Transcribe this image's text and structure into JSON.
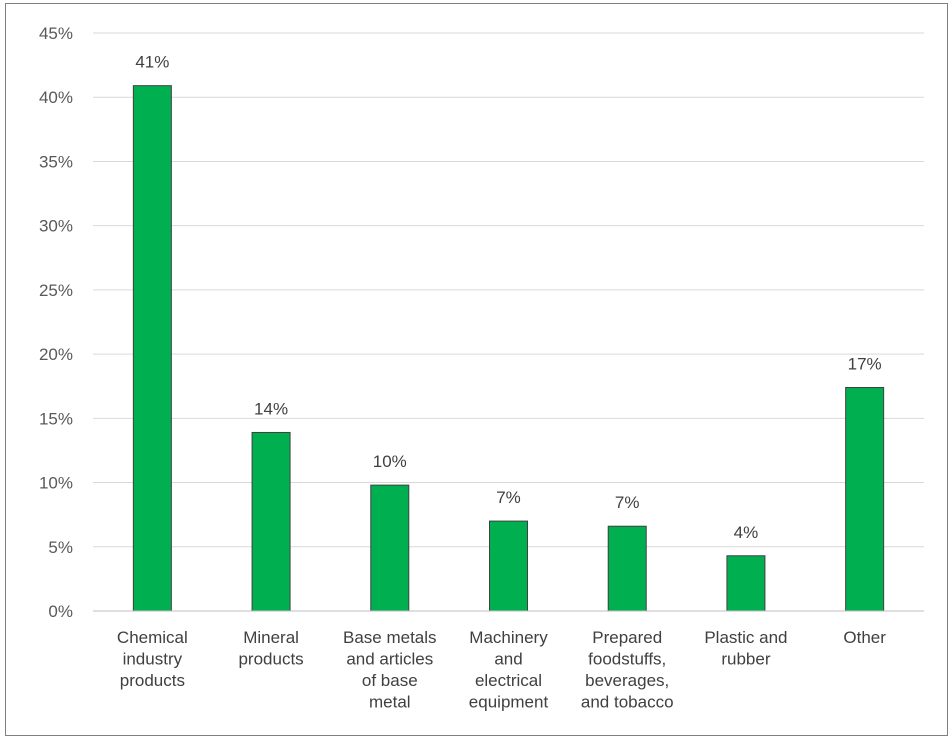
{
  "chart_data": {
    "type": "bar",
    "categories": [
      [
        "Chemical",
        "industry",
        "products"
      ],
      [
        "Mineral",
        "products"
      ],
      [
        "Base metals",
        "and articles",
        "of base",
        "metal"
      ],
      [
        "Machinery",
        "and",
        "electrical",
        "equipment"
      ],
      [
        "Prepared",
        "foodstuffs,",
        "beverages,",
        "and tobacco"
      ],
      [
        "Plastic and",
        "rubber"
      ],
      [
        "Other"
      ]
    ],
    "values": [
      40.9,
      13.9,
      9.8,
      7.0,
      6.6,
      4.3,
      17.4
    ],
    "data_labels": [
      "41%",
      "14%",
      "10%",
      "7%",
      "7%",
      "4%",
      "17%"
    ],
    "yticks": [
      "0%",
      "5%",
      "10%",
      "15%",
      "20%",
      "25%",
      "30%",
      "35%",
      "40%",
      "45%"
    ],
    "ylim": [
      0,
      45
    ],
    "grid": true,
    "bar_color": "#00b050",
    "title": "",
    "xlabel": "",
    "ylabel": ""
  }
}
